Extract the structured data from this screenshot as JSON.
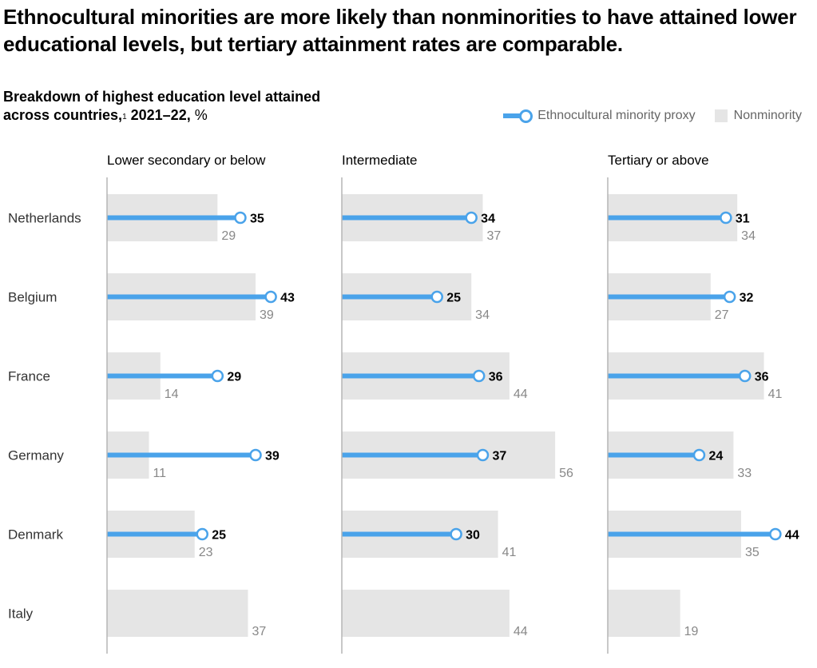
{
  "title": "Ethnocultural minorities are more likely than nonminorities to have attained lower educational levels, but tertiary attainment rates are comparable.",
  "subtitle": {
    "line1": "Breakdown of highest education level attained",
    "line2": "across countries,",
    "footnote": "1",
    "period": " 2021–22,",
    "unit": " %"
  },
  "legend": {
    "minority": "Ethnocultural minority proxy",
    "nonminority": "Nonminority"
  },
  "colors": {
    "minority": "#4aa3ea",
    "nonminority": "#e5e5e5"
  },
  "chart_data": {
    "type": "bar",
    "title": "Breakdown of highest education level attained across countries, 2021–22, %",
    "categories": [
      "Netherlands",
      "Belgium",
      "France",
      "Germany",
      "Denmark",
      "Italy"
    ],
    "panels": [
      {
        "name": "Lower secondary or below",
        "series": [
          {
            "name": "Ethnocultural minority proxy",
            "values": [
              35,
              43,
              29,
              39,
              25,
              null
            ]
          },
          {
            "name": "Nonminority",
            "values": [
              29,
              39,
              14,
              11,
              23,
              37
            ]
          }
        ]
      },
      {
        "name": "Intermediate",
        "series": [
          {
            "name": "Ethnocultural minority proxy",
            "values": [
              34,
              25,
              36,
              37,
              30,
              null
            ]
          },
          {
            "name": "Nonminority",
            "values": [
              37,
              34,
              44,
              56,
              41,
              44
            ]
          }
        ]
      },
      {
        "name": "Tertiary or above",
        "series": [
          {
            "name": "Ethnocultural minority proxy",
            "values": [
              31,
              32,
              36,
              24,
              44,
              null
            ]
          },
          {
            "name": "Nonminority",
            "values": [
              34,
              27,
              41,
              33,
              35,
              19
            ]
          }
        ]
      }
    ],
    "xlim": [
      0,
      60
    ],
    "legend_position": "top-right",
    "grid": false
  }
}
